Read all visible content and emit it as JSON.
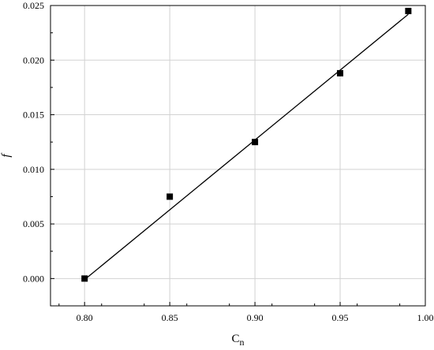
{
  "chart_data": {
    "type": "scatter",
    "title": "",
    "xlabel": "C",
    "xlabel_sub": "n",
    "ylabel": "f",
    "xlim": [
      0.78,
      1.0
    ],
    "ylim": [
      -0.0025,
      0.025
    ],
    "grid": true,
    "xticks": [
      "0.80",
      "0.85",
      "0.90",
      "0.95",
      "1.00"
    ],
    "xtick_values": [
      0.8,
      0.85,
      0.9,
      0.95,
      1.0
    ],
    "yticks": [
      "0.000",
      "0.005",
      "0.010",
      "0.015",
      "0.020",
      "0.025"
    ],
    "ytick_values": [
      0.0,
      0.005,
      0.01,
      0.015,
      0.02,
      0.025
    ],
    "series": [
      {
        "marker": "square",
        "color": "#000000",
        "x": [
          0.8,
          0.85,
          0.9,
          0.95,
          0.99
        ],
        "y": [
          0.0,
          0.0075,
          0.0125,
          0.0188,
          0.0245
        ]
      }
    ],
    "fit_line": {
      "color": "#000000",
      "x": [
        0.8,
        0.99
      ],
      "y": [
        -0.0001,
        0.0242
      ]
    }
  }
}
